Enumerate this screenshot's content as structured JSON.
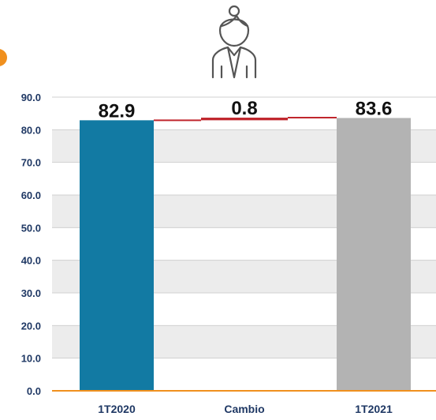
{
  "colors": {
    "start_bar": "#127aa3",
    "end_bar": "#b3b3b3",
    "change_bar": "#c0262d",
    "connector": "#c0262d",
    "baseline": "#f0901e",
    "band": "#ececec",
    "grid": "#d0d0d0",
    "accent_dot": "#f0901e",
    "icon": "#555555"
  },
  "icon": "woman-person-icon",
  "chart_data": {
    "type": "bar",
    "subtype": "waterfall",
    "categories": [
      "1T2020",
      "Cambio",
      "1T2021"
    ],
    "values": [
      82.9,
      0.8,
      83.6
    ],
    "data_labels": [
      "82.9",
      "0.8",
      "83.6"
    ],
    "ylim": [
      0,
      90
    ],
    "yticks": [
      "0.0",
      "10.0",
      "20.0",
      "30.0",
      "40.0",
      "50.0",
      "60.0",
      "70.0",
      "80.0",
      "90.0"
    ],
    "title": "",
    "xlabel": "",
    "ylabel": "",
    "grid": true,
    "legend": "none"
  }
}
